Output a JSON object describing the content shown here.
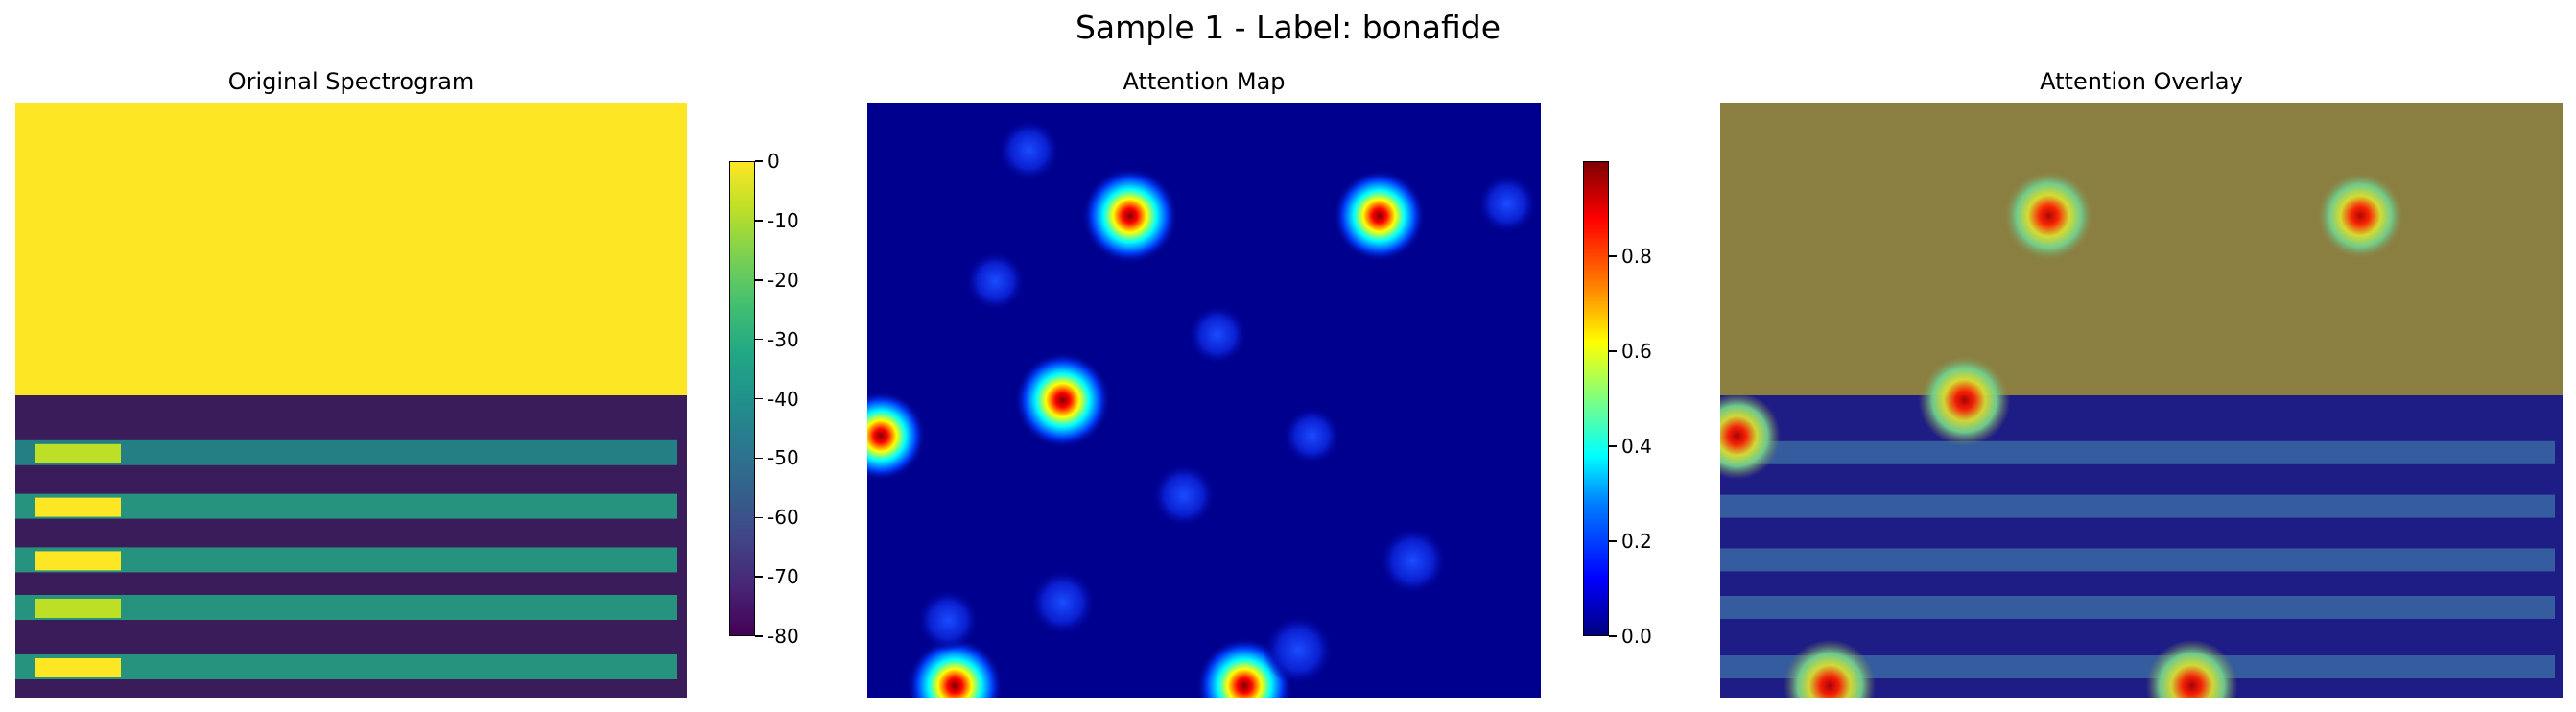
{
  "figure": {
    "suptitle": "Sample 1 - Label: bonafide"
  },
  "chart_data": [
    {
      "type": "heatmap",
      "title": "Original Spectrogram",
      "colormap": "viridis",
      "axes_visible": false,
      "colorbar": {
        "vmin": -80,
        "vmax": 0,
        "ticks": [
          0,
          -10,
          -20,
          -30,
          -40,
          -50,
          -60,
          -70,
          -80
        ]
      },
      "description_regions": [
        {
          "region": "upper",
          "frequency_fraction": [
            0.51,
            1.0
          ],
          "value": 0
        },
        {
          "region": "lower",
          "frequency_fraction": [
            0.0,
            0.51
          ],
          "value_range": [
            -80,
            -5
          ]
        }
      ],
      "harmonic_bands": [
        {
          "frequency_fraction": 0.41,
          "value": -38
        },
        {
          "frequency_fraction": 0.32,
          "value": -30
        },
        {
          "frequency_fraction": 0.23,
          "value": -32
        },
        {
          "frequency_fraction": 0.15,
          "value": -35
        },
        {
          "frequency_fraction": 0.05,
          "value": -30
        }
      ]
    },
    {
      "type": "heatmap",
      "title": "Attention Map",
      "colormap": "jet",
      "axes_visible": false,
      "colorbar": {
        "vmin": 0.0,
        "vmax": 1.0,
        "ticks": [
          0.0,
          0.2,
          0.4,
          0.6,
          0.8
        ],
        "tick_labels": [
          "0.0",
          "0.2",
          "0.4",
          "0.6",
          "0.8"
        ]
      },
      "hotspots": [
        {
          "x": 0.39,
          "y": 0.81,
          "value": 1.0
        },
        {
          "x": 0.76,
          "y": 0.81,
          "value": 0.9
        },
        {
          "x": 0.29,
          "y": 0.5,
          "value": 1.0
        },
        {
          "x": 0.02,
          "y": 0.44,
          "value": 0.85
        },
        {
          "x": 0.13,
          "y": 0.02,
          "value": 1.0
        },
        {
          "x": 0.56,
          "y": 0.02,
          "value": 1.0
        },
        {
          "x": 0.64,
          "y": 0.08,
          "value": 0.4
        },
        {
          "x": 0.81,
          "y": 0.23,
          "value": 0.35
        },
        {
          "x": 0.47,
          "y": 0.34,
          "value": 0.25
        },
        {
          "x": 0.29,
          "y": 0.16,
          "value": 0.3
        },
        {
          "x": 0.12,
          "y": 0.13,
          "value": 0.2
        },
        {
          "x": 0.24,
          "y": 0.92,
          "value": 0.2
        },
        {
          "x": 0.19,
          "y": 0.7,
          "value": 0.15
        },
        {
          "x": 0.95,
          "y": 0.83,
          "value": 0.15
        },
        {
          "x": 0.52,
          "y": 0.61,
          "value": 0.15
        },
        {
          "x": 0.66,
          "y": 0.44,
          "value": 0.1
        }
      ]
    },
    {
      "type": "heatmap",
      "title": "Attention Overlay",
      "colormap": "jet over viridis",
      "axes_visible": false
    }
  ]
}
